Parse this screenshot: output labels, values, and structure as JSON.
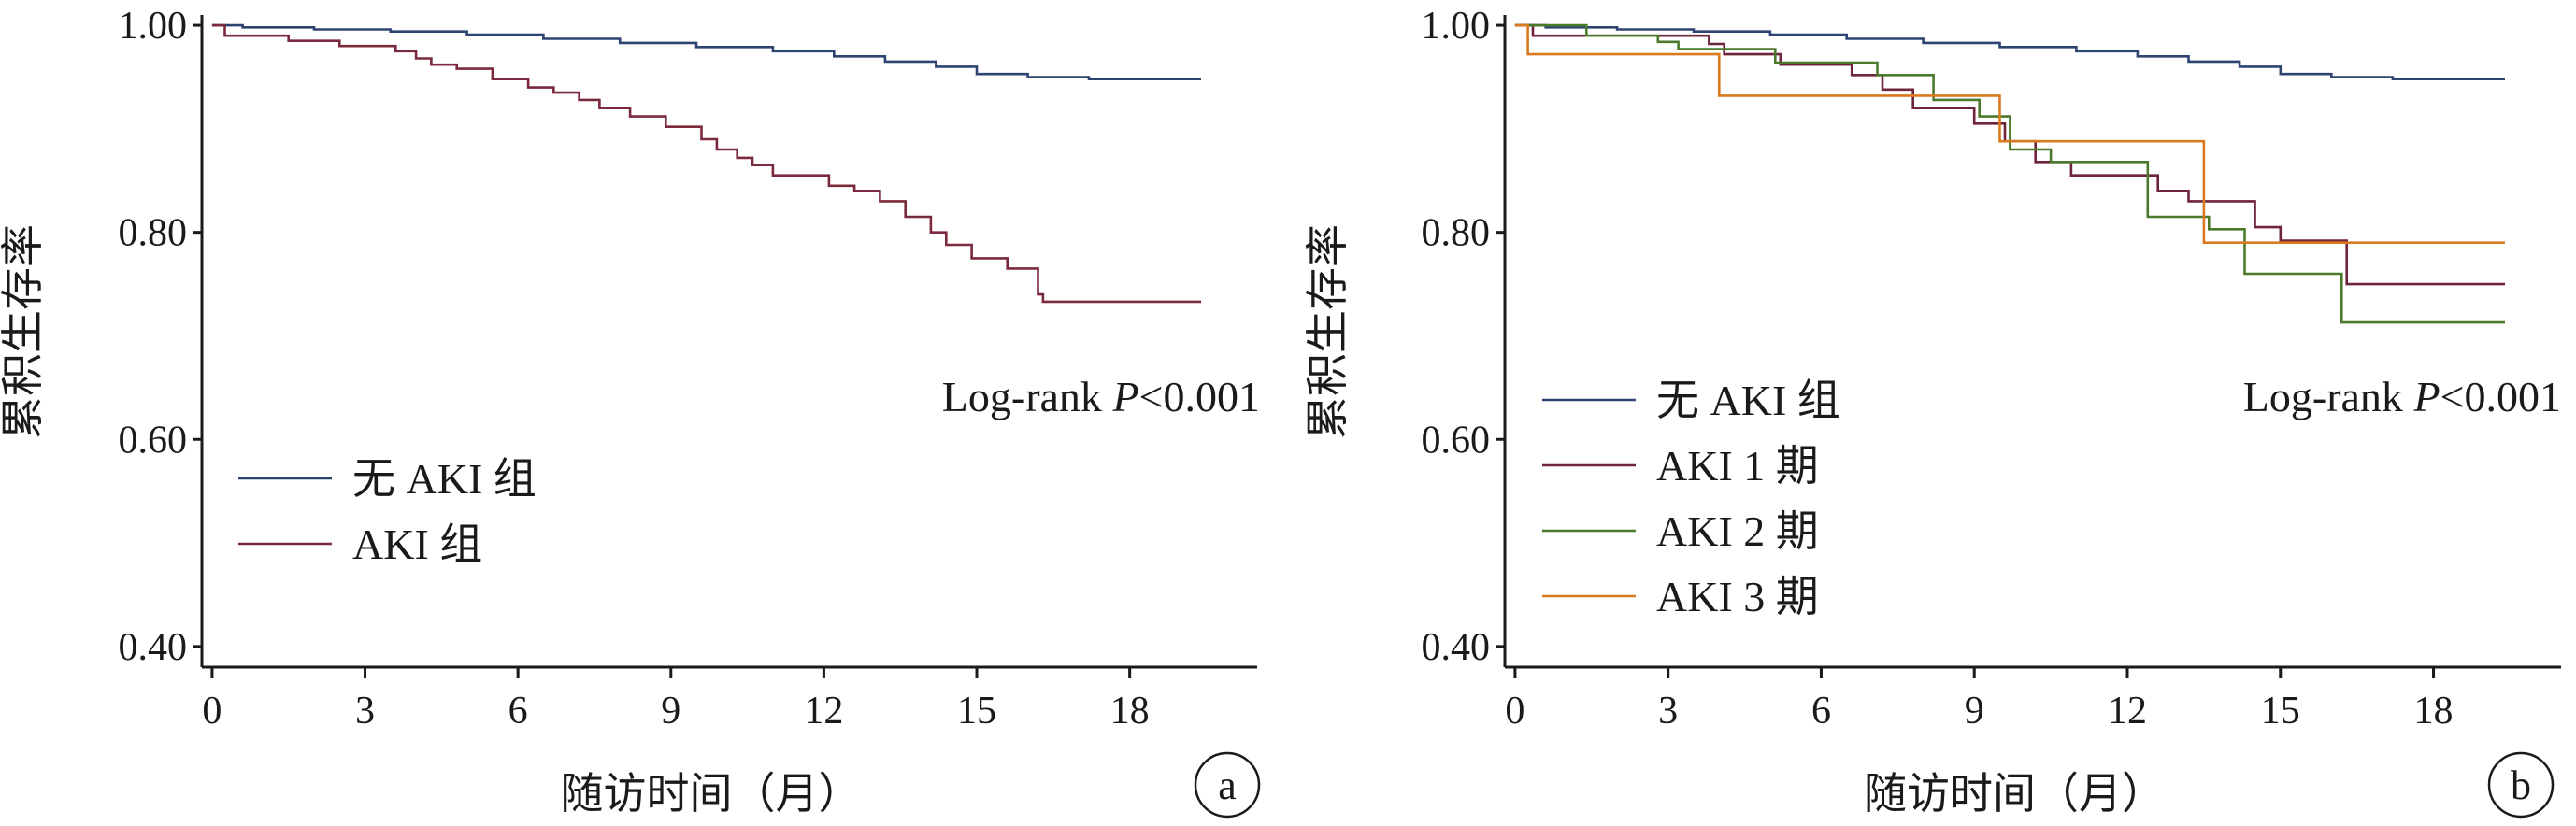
{
  "chart_data": [
    {
      "panel": "a",
      "type": "line",
      "step": true,
      "xlabel": "随访时间（月）",
      "ylabel": "累积生存率",
      "xlim": [
        -0.2,
        20.5
      ],
      "ylim": [
        0.38,
        1.01
      ],
      "xticks": [
        0,
        3,
        6,
        9,
        12,
        15,
        18
      ],
      "yticks": [
        1.0,
        0.8,
        0.6,
        0.4
      ],
      "ytick_labels": [
        "1.00",
        "0.80",
        "0.60",
        "0.40"
      ],
      "annotation": {
        "prefix": "Log-rank ",
        "italic": "P",
        "suffix": "<0.001"
      },
      "legend_position": "left",
      "series": [
        {
          "name": "无 AKI 组",
          "color": "#2d4470",
          "points": [
            [
              0,
              1.0
            ],
            [
              0.6,
              0.998
            ],
            [
              2,
              0.996
            ],
            [
              3.5,
              0.994
            ],
            [
              5,
              0.991
            ],
            [
              6.5,
              0.987
            ],
            [
              8,
              0.983
            ],
            [
              9.5,
              0.979
            ],
            [
              11,
              0.975
            ],
            [
              12.2,
              0.97
            ],
            [
              13.2,
              0.965
            ],
            [
              14.2,
              0.96
            ],
            [
              15,
              0.953
            ],
            [
              16,
              0.95
            ],
            [
              17.2,
              0.948
            ],
            [
              19.4,
              0.948
            ]
          ]
        },
        {
          "name": "AKI 组",
          "color": "#7a2a3c",
          "points": [
            [
              0,
              1.0
            ],
            [
              0.25,
              0.99
            ],
            [
              1.5,
              0.985
            ],
            [
              2.5,
              0.98
            ],
            [
              3.6,
              0.975
            ],
            [
              4,
              0.968
            ],
            [
              4.3,
              0.962
            ],
            [
              4.8,
              0.958
            ],
            [
              5.5,
              0.948
            ],
            [
              6.2,
              0.94
            ],
            [
              6.7,
              0.935
            ],
            [
              7.2,
              0.928
            ],
            [
              7.6,
              0.92
            ],
            [
              8.2,
              0.912
            ],
            [
              8.9,
              0.902
            ],
            [
              9.6,
              0.89
            ],
            [
              9.9,
              0.88
            ],
            [
              10.3,
              0.872
            ],
            [
              10.6,
              0.865
            ],
            [
              11,
              0.855
            ],
            [
              12.1,
              0.845
            ],
            [
              12.6,
              0.84
            ],
            [
              13.1,
              0.83
            ],
            [
              13.6,
              0.815
            ],
            [
              14.1,
              0.8
            ],
            [
              14.4,
              0.788
            ],
            [
              14.9,
              0.775
            ],
            [
              15.6,
              0.765
            ],
            [
              16.2,
              0.74
            ],
            [
              16.3,
              0.733
            ],
            [
              19.4,
              0.733
            ]
          ]
        }
      ]
    },
    {
      "panel": "b",
      "type": "line",
      "step": true,
      "xlabel": "随访时间（月）",
      "ylabel": "累积生存率",
      "xlim": [
        -0.2,
        20.5
      ],
      "ylim": [
        0.38,
        1.01
      ],
      "xticks": [
        0,
        3,
        6,
        9,
        12,
        15,
        18
      ],
      "yticks": [
        1.0,
        0.8,
        0.6,
        0.4
      ],
      "ytick_labels": [
        "1.00",
        "0.80",
        "0.60",
        "0.40"
      ],
      "annotation": {
        "prefix": "Log-rank ",
        "italic": "P",
        "suffix": "<0.001"
      },
      "legend_position": "left",
      "series": [
        {
          "name": "无 AKI 组",
          "color": "#2d4470",
          "points": [
            [
              0,
              1.0
            ],
            [
              0.6,
              0.998
            ],
            [
              2,
              0.996
            ],
            [
              3.5,
              0.994
            ],
            [
              5,
              0.991
            ],
            [
              6.5,
              0.987
            ],
            [
              8,
              0.983
            ],
            [
              9.5,
              0.979
            ],
            [
              11,
              0.975
            ],
            [
              12.2,
              0.97
            ],
            [
              13.2,
              0.965
            ],
            [
              14.2,
              0.96
            ],
            [
              15,
              0.953
            ],
            [
              16,
              0.95
            ],
            [
              17.2,
              0.948
            ],
            [
              19.4,
              0.948
            ]
          ]
        },
        {
          "name": "AKI 1 期",
          "color": "#6e2439",
          "points": [
            [
              0,
              1.0
            ],
            [
              0.35,
              0.99
            ],
            [
              3.8,
              0.982
            ],
            [
              4.1,
              0.972
            ],
            [
              5.2,
              0.962
            ],
            [
              6.6,
              0.952
            ],
            [
              7.2,
              0.938
            ],
            [
              7.8,
              0.92
            ],
            [
              9.0,
              0.905
            ],
            [
              9.6,
              0.888
            ],
            [
              10.2,
              0.868
            ],
            [
              10.9,
              0.855
            ],
            [
              12.6,
              0.84
            ],
            [
              13.2,
              0.83
            ],
            [
              14.5,
              0.805
            ],
            [
              15,
              0.792
            ],
            [
              16.3,
              0.75
            ],
            [
              19.4,
              0.75
            ]
          ]
        },
        {
          "name": "AKI 2 期",
          "color": "#4c7a2c",
          "points": [
            [
              0,
              1.0
            ],
            [
              1.4,
              0.99
            ],
            [
              2.8,
              0.984
            ],
            [
              3.2,
              0.977
            ],
            [
              5.1,
              0.964
            ],
            [
              7.1,
              0.952
            ],
            [
              8.2,
              0.928
            ],
            [
              9.1,
              0.912
            ],
            [
              9.7,
              0.88
            ],
            [
              10.5,
              0.868
            ],
            [
              12.4,
              0.815
            ],
            [
              13.6,
              0.803
            ],
            [
              14.3,
              0.76
            ],
            [
              16.2,
              0.713
            ],
            [
              19.4,
              0.713
            ]
          ]
        },
        {
          "name": "AKI 3 期",
          "color": "#d97a1f",
          "points": [
            [
              0,
              1.0
            ],
            [
              0.25,
              0.972
            ],
            [
              4.0,
              0.932
            ],
            [
              9.5,
              0.888
            ],
            [
              13.5,
              0.79
            ],
            [
              19.4,
              0.79
            ]
          ]
        }
      ]
    }
  ]
}
